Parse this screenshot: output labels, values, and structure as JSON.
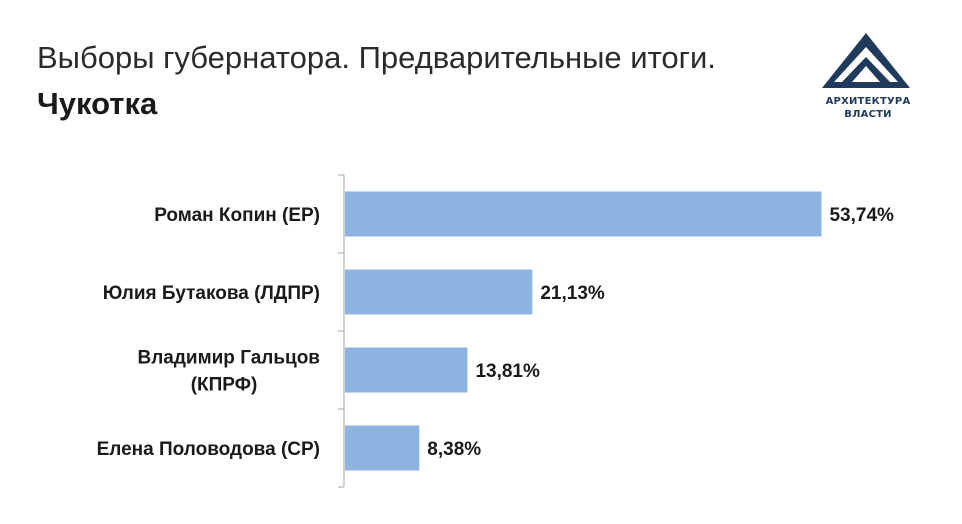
{
  "header": {
    "title": "Выборы губернатора. Предварительные итоги.",
    "subtitle": "Чукотка"
  },
  "logo": {
    "line1": "АРХИТЕКТУРА",
    "line2": "ВЛАСТИ",
    "color": "#1f3a5a"
  },
  "chart_data": {
    "type": "bar",
    "orientation": "horizontal",
    "categories": [
      [
        "Роман Копин (ЕР)"
      ],
      [
        "Юлия Бутакова (ЛДПР)"
      ],
      [
        "Владимир Гальцов",
        "(КПРФ)"
      ],
      [
        "Елена Половодова (СР)"
      ]
    ],
    "values": [
      53.74,
      21.13,
      13.81,
      8.38
    ],
    "value_labels": [
      "53,74%",
      "21,13%",
      "13,81%",
      "8,38%"
    ],
    "xlim": [
      0,
      60
    ],
    "bar_color": "#8fb3e1",
    "grid": false,
    "legend": "none"
  }
}
